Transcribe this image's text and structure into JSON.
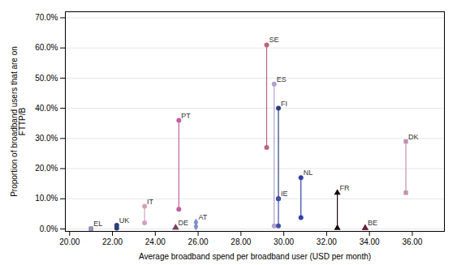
{
  "chart_data": {
    "type": "dumbbell",
    "xlabel": "Average broadband spend per broadband user (USD per month)",
    "ylabel": "Proportion of broadband users that are on\nFTTP/B",
    "series": [
      {
        "name": "EL",
        "x": 21.0,
        "values": [
          0.001,
          0.001
        ],
        "color": "#9090b8",
        "marker": "square"
      },
      {
        "name": "UK",
        "x": 22.2,
        "values": [
          0.003,
          0.012
        ],
        "color": "#2c3e7a",
        "marker": "circle"
      },
      {
        "name": "IT",
        "x": 23.5,
        "values": [
          0.02,
          0.075
        ],
        "color": "#d4a0c0",
        "marker": "circle"
      },
      {
        "name": "DE",
        "x": 24.95,
        "values": [
          0.004,
          0.004
        ],
        "color": "#7b4060",
        "marker": "triangle"
      },
      {
        "name": "PT",
        "x": 25.1,
        "values": [
          0.065,
          0.36
        ],
        "color": "#c060a0",
        "marker": "circle"
      },
      {
        "name": "AT",
        "x": 25.9,
        "values": [
          0.008,
          0.022
        ],
        "color": "#8090c8",
        "marker": "diamond"
      },
      {
        "name": "SE",
        "x": 29.2,
        "values": [
          0.27,
          0.61
        ],
        "color": "#c06080",
        "marker": "circle"
      },
      {
        "name": "ES",
        "x": 29.55,
        "values": [
          0.01,
          0.48
        ],
        "color": "#b0a0d0",
        "marker": "circle"
      },
      {
        "name": "FI",
        "x": 29.75,
        "values": [
          0.1,
          0.4
        ],
        "color": "#2c3e7a",
        "marker": "circle"
      },
      {
        "name": "IE",
        "x": 29.75,
        "values": [
          0.01,
          0.1
        ],
        "color": "#4050a8",
        "marker": "circle"
      },
      {
        "name": "NL",
        "x": 30.8,
        "values": [
          0.038,
          0.17
        ],
        "color": "#3040a8",
        "marker": "circle"
      },
      {
        "name": "FR",
        "x": 32.5,
        "values": [
          0.003,
          0.12
        ],
        "color": "#1a0a0a",
        "marker": "triangle"
      },
      {
        "name": "BE",
        "x": 33.8,
        "values": [
          0.003,
          0.003
        ],
        "color": "#6a2040",
        "marker": "triangle"
      },
      {
        "name": "DK",
        "x": 35.7,
        "values": [
          0.12,
          0.29
        ],
        "color": "#c090b0",
        "marker": "square"
      }
    ],
    "xlim": [
      19.8,
      37.5
    ],
    "ylim": [
      -0.008,
      0.72
    ],
    "xticks": [
      {
        "value": 20.0,
        "label": "20.00"
      },
      {
        "value": 22.0,
        "label": "22.00"
      },
      {
        "value": 24.0,
        "label": "24.00"
      },
      {
        "value": 26.0,
        "label": "26.00"
      },
      {
        "value": 28.0,
        "label": "28.00"
      },
      {
        "value": 30.0,
        "label": "30.00"
      },
      {
        "value": 32.0,
        "label": "32.00"
      },
      {
        "value": 34.0,
        "label": "34.00"
      },
      {
        "value": 36.0,
        "label": "36.00"
      }
    ],
    "yticks": [
      {
        "value": 0.0,
        "label": "0.0%"
      },
      {
        "value": 0.1,
        "label": "10.0%"
      },
      {
        "value": 0.2,
        "label": "20.0%"
      },
      {
        "value": 0.3,
        "label": "30.0%"
      },
      {
        "value": 0.4,
        "label": "40.0%"
      },
      {
        "value": 0.5,
        "label": "50.0%"
      },
      {
        "value": 0.6,
        "label": "60.0%"
      },
      {
        "value": 0.7,
        "label": "70.0%"
      }
    ],
    "grid": "y"
  }
}
